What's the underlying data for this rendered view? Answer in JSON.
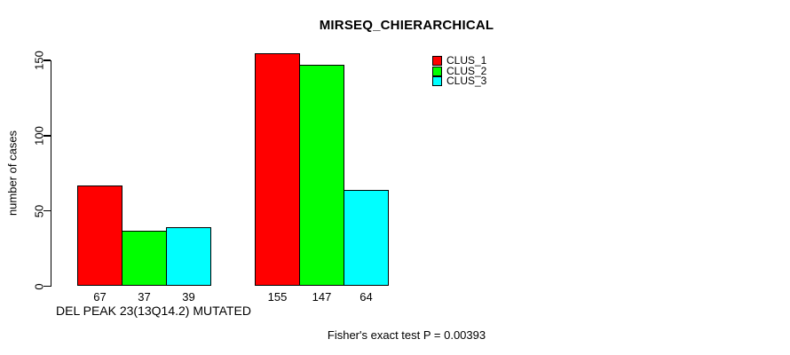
{
  "chart_data": {
    "type": "bar",
    "title": "MIRSEQ_CHIERARCHICAL",
    "ylabel": "number of cases",
    "xlabel": "DEL PEAK 23(13Q14.2) MUTATED",
    "annotation": "Fisher's exact test P = 0.00393",
    "ylim": [
      0,
      155
    ],
    "yticks": [
      0,
      50,
      100,
      150
    ],
    "grid": false,
    "legend_position": "top-right",
    "bar_value_labels_shown": true,
    "series": [
      {
        "name": "CLUS_1",
        "color": "#ff0000",
        "values": [
          67,
          155
        ]
      },
      {
        "name": "CLUS_2",
        "color": "#00ff00",
        "values": [
          37,
          147
        ]
      },
      {
        "name": "CLUS_3",
        "color": "#00ffff",
        "values": [
          39,
          64
        ]
      }
    ]
  },
  "colors": {
    "background": "#ffffff",
    "text": "#000000",
    "axis": "#000000"
  }
}
